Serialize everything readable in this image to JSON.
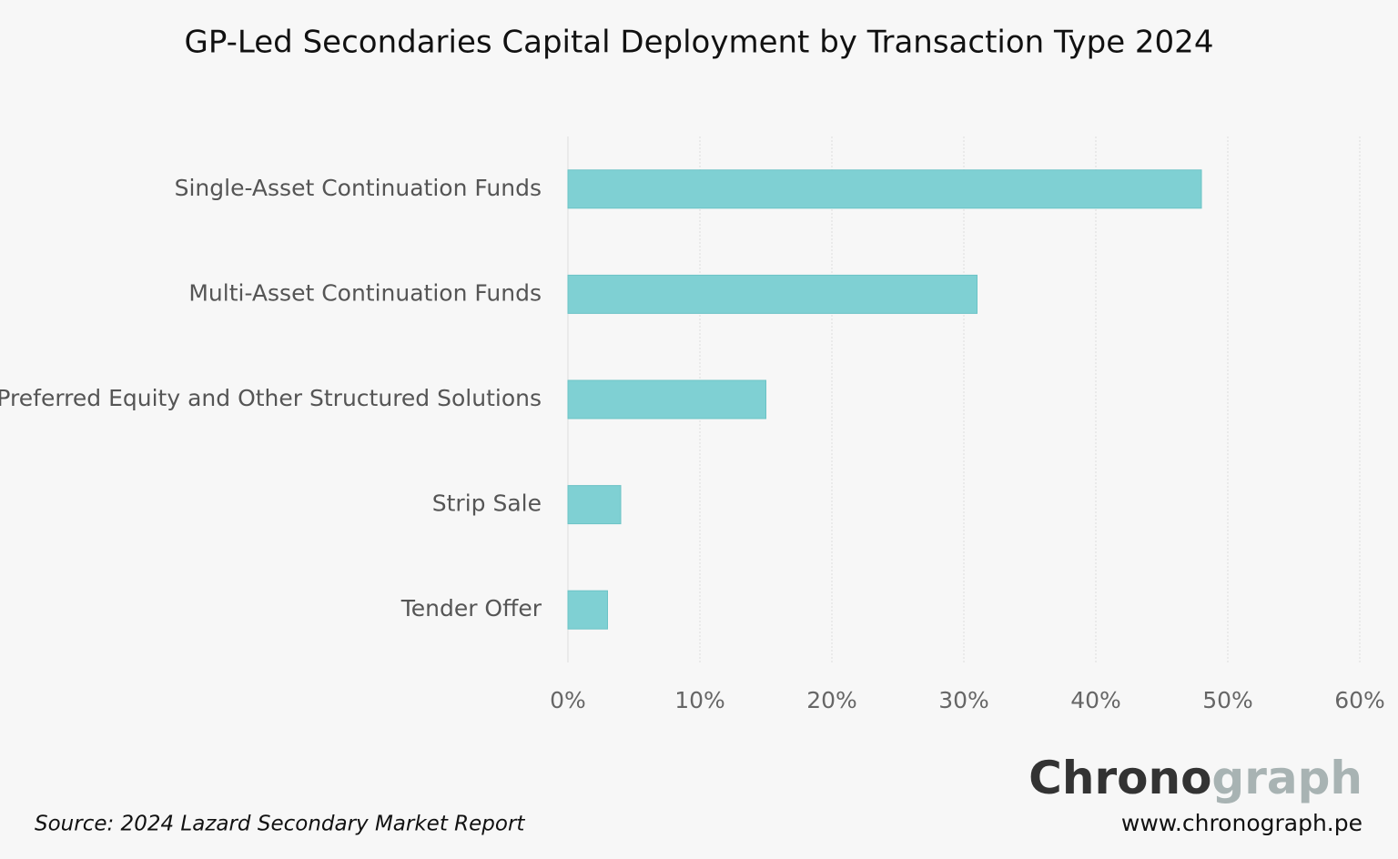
{
  "chart_data": {
    "type": "hbar",
    "title": "GP-Led Secondaries Capital Deployment by Transaction Type 2024",
    "categories": [
      "Single-Asset Continuation Funds",
      "Multi-Asset Continuation Funds",
      "Preferred Equity and Other Structured Solutions",
      "Strip Sale",
      "Tender Offer"
    ],
    "values": [
      48,
      31,
      15,
      4,
      3
    ],
    "color": "#7fd0d3",
    "xlim": [
      0,
      60
    ],
    "xticks": [
      {
        "value": 0,
        "label": "0%"
      },
      {
        "value": 10,
        "label": "10%"
      },
      {
        "value": 20,
        "label": "20%"
      },
      {
        "value": 30,
        "label": "30%"
      },
      {
        "value": 40,
        "label": "40%"
      },
      {
        "value": 50,
        "label": "50%"
      },
      {
        "value": 60,
        "label": "60%"
      }
    ],
    "grid": true,
    "source": "Source: 2024 Lazard Secondary Market Report"
  },
  "logo": {
    "dark": "Chrono",
    "light": "graph",
    "url": "www.chronograph.pe"
  }
}
